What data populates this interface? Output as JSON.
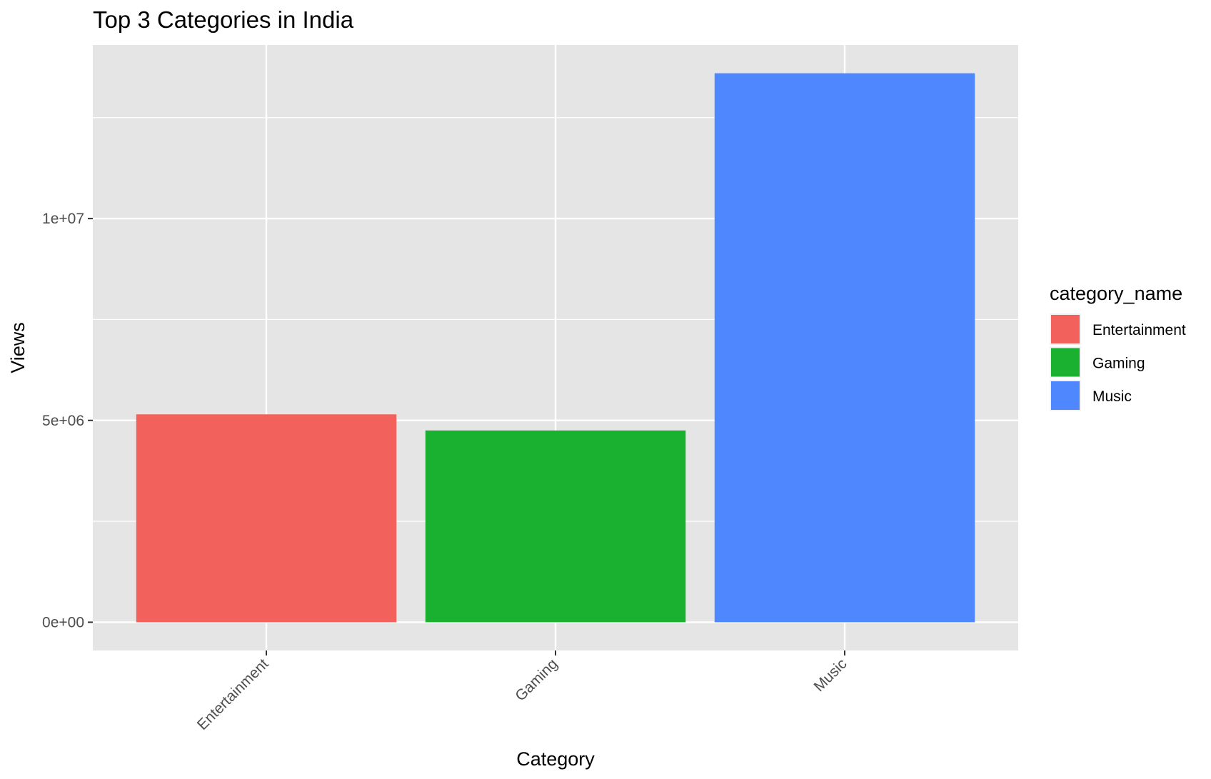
{
  "chart_data": {
    "type": "bar",
    "title": "Top 3 Categories in India",
    "xlabel": "Category",
    "ylabel": "Views",
    "categories": [
      "Entertainment",
      "Gaming",
      "Music"
    ],
    "values": [
      5150000,
      4750000,
      13600000
    ],
    "colors": [
      "#F2615B",
      "#19B12F",
      "#4F87FE"
    ],
    "ylim": [
      -700000,
      14300000
    ],
    "yticks": [
      {
        "value": 0,
        "label": "0e+00"
      },
      {
        "value": 5000000,
        "label": "5e+06"
      },
      {
        "value": 10000000,
        "label": "1e+07"
      }
    ],
    "y_minor_ticks": [
      2500000,
      7500000,
      12500000
    ],
    "grid": true,
    "panel_background": "#E5E5E5",
    "grid_color": "#FFFFFF",
    "legend": {
      "title": "category_name",
      "position": "right",
      "entries": [
        "Entertainment",
        "Gaming",
        "Music"
      ]
    }
  }
}
